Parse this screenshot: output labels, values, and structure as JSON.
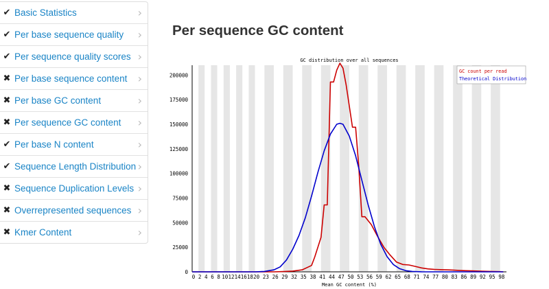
{
  "sidebar": {
    "items": [
      {
        "label": "Basic Statistics",
        "status": "pass",
        "icon": "check-icon",
        "glyph": "✔"
      },
      {
        "label": "Per base sequence quality",
        "status": "pass",
        "icon": "check-icon",
        "glyph": "✔"
      },
      {
        "label": "Per sequence quality scores",
        "status": "pass",
        "icon": "check-icon",
        "glyph": "✔"
      },
      {
        "label": "Per base sequence content",
        "status": "fail",
        "icon": "cross-icon",
        "glyph": "✖"
      },
      {
        "label": "Per base GC content",
        "status": "fail",
        "icon": "cross-icon",
        "glyph": "✖"
      },
      {
        "label": "Per sequence GC content",
        "status": "fail",
        "icon": "cross-icon",
        "glyph": "✖"
      },
      {
        "label": "Per base N content",
        "status": "pass",
        "icon": "check-icon",
        "glyph": "✔"
      },
      {
        "label": "Sequence Length Distribution",
        "status": "pass",
        "icon": "check-icon",
        "glyph": "✔"
      },
      {
        "label": "Sequence Duplication Levels",
        "status": "fail",
        "icon": "cross-icon",
        "glyph": "✖"
      },
      {
        "label": "Overrepresented sequences",
        "status": "fail",
        "icon": "cross-icon",
        "glyph": "✖"
      },
      {
        "label": "Kmer Content",
        "status": "fail",
        "icon": "cross-icon",
        "glyph": "✖"
      }
    ],
    "chevron_glyph": "›"
  },
  "main": {
    "title": "Per sequence GC content"
  },
  "chart_data": {
    "type": "line",
    "title": "GC distribution over all sequences",
    "xlabel": "Mean GC content (%)",
    "ylabel": "",
    "xlim": [
      0,
      100
    ],
    "ylim": [
      0,
      210000
    ],
    "yticks": [
      0,
      25000,
      50000,
      75000,
      100000,
      125000,
      150000,
      175000,
      200000
    ],
    "xticks": [
      0,
      2,
      4,
      6,
      8,
      10,
      12,
      14,
      16,
      18,
      20,
      23,
      26,
      29,
      32,
      35,
      38,
      41,
      44,
      47,
      50,
      53,
      56,
      59,
      62,
      65,
      68,
      71,
      74,
      77,
      80,
      83,
      86,
      89,
      92,
      95,
      98
    ],
    "legend_position": "top-right",
    "colors": {
      "gc": "#cc0000",
      "theory": "#0000cc",
      "band_light": "#ffffff",
      "band_dark": "#e6e6e6"
    },
    "series": [
      {
        "name": "GC count per read",
        "color": "#cc0000",
        "points": [
          [
            0,
            0
          ],
          [
            20,
            0
          ],
          [
            26,
            0
          ],
          [
            29,
            300
          ],
          [
            32,
            800
          ],
          [
            35,
            2000
          ],
          [
            37,
            5000
          ],
          [
            38,
            6500
          ],
          [
            39,
            15000
          ],
          [
            41,
            35000
          ],
          [
            42,
            68000
          ],
          [
            43,
            68000
          ],
          [
            44,
            193000
          ],
          [
            45,
            193000
          ],
          [
            46,
            205000
          ],
          [
            47,
            212000
          ],
          [
            48,
            207000
          ],
          [
            49,
            190000
          ],
          [
            51,
            147000
          ],
          [
            52,
            147000
          ],
          [
            53,
            108000
          ],
          [
            54,
            56000
          ],
          [
            55,
            56000
          ],
          [
            57,
            48000
          ],
          [
            59,
            36000
          ],
          [
            61,
            25000
          ],
          [
            63,
            17000
          ],
          [
            65,
            10000
          ],
          [
            67,
            7500
          ],
          [
            69,
            7000
          ],
          [
            71,
            5500
          ],
          [
            73,
            4000
          ],
          [
            75,
            3000
          ],
          [
            77,
            2500
          ],
          [
            79,
            2200
          ],
          [
            81,
            2000
          ],
          [
            83,
            1800
          ],
          [
            85,
            1500
          ],
          [
            87,
            1200
          ],
          [
            89,
            1000
          ],
          [
            92,
            600
          ],
          [
            95,
            400
          ],
          [
            98,
            200
          ],
          [
            99,
            0
          ]
        ]
      },
      {
        "name": "Theoretical Distribution",
        "color": "#0000cc",
        "points": [
          [
            0,
            0
          ],
          [
            20,
            0
          ],
          [
            23,
            400
          ],
          [
            26,
            2000
          ],
          [
            28,
            5000
          ],
          [
            30,
            12000
          ],
          [
            32,
            23000
          ],
          [
            34,
            37000
          ],
          [
            36,
            55000
          ],
          [
            38,
            77000
          ],
          [
            40,
            101000
          ],
          [
            42,
            123000
          ],
          [
            44,
            140000
          ],
          [
            46,
            150000
          ],
          [
            47,
            151000
          ],
          [
            48,
            150000
          ],
          [
            50,
            138000
          ],
          [
            52,
            118000
          ],
          [
            54,
            93000
          ],
          [
            56,
            68000
          ],
          [
            58,
            46000
          ],
          [
            60,
            28000
          ],
          [
            62,
            15500
          ],
          [
            64,
            7500
          ],
          [
            66,
            3200
          ],
          [
            68,
            1200
          ],
          [
            70,
            400
          ],
          [
            73,
            100
          ],
          [
            76,
            0
          ],
          [
            99,
            0
          ]
        ]
      }
    ]
  }
}
